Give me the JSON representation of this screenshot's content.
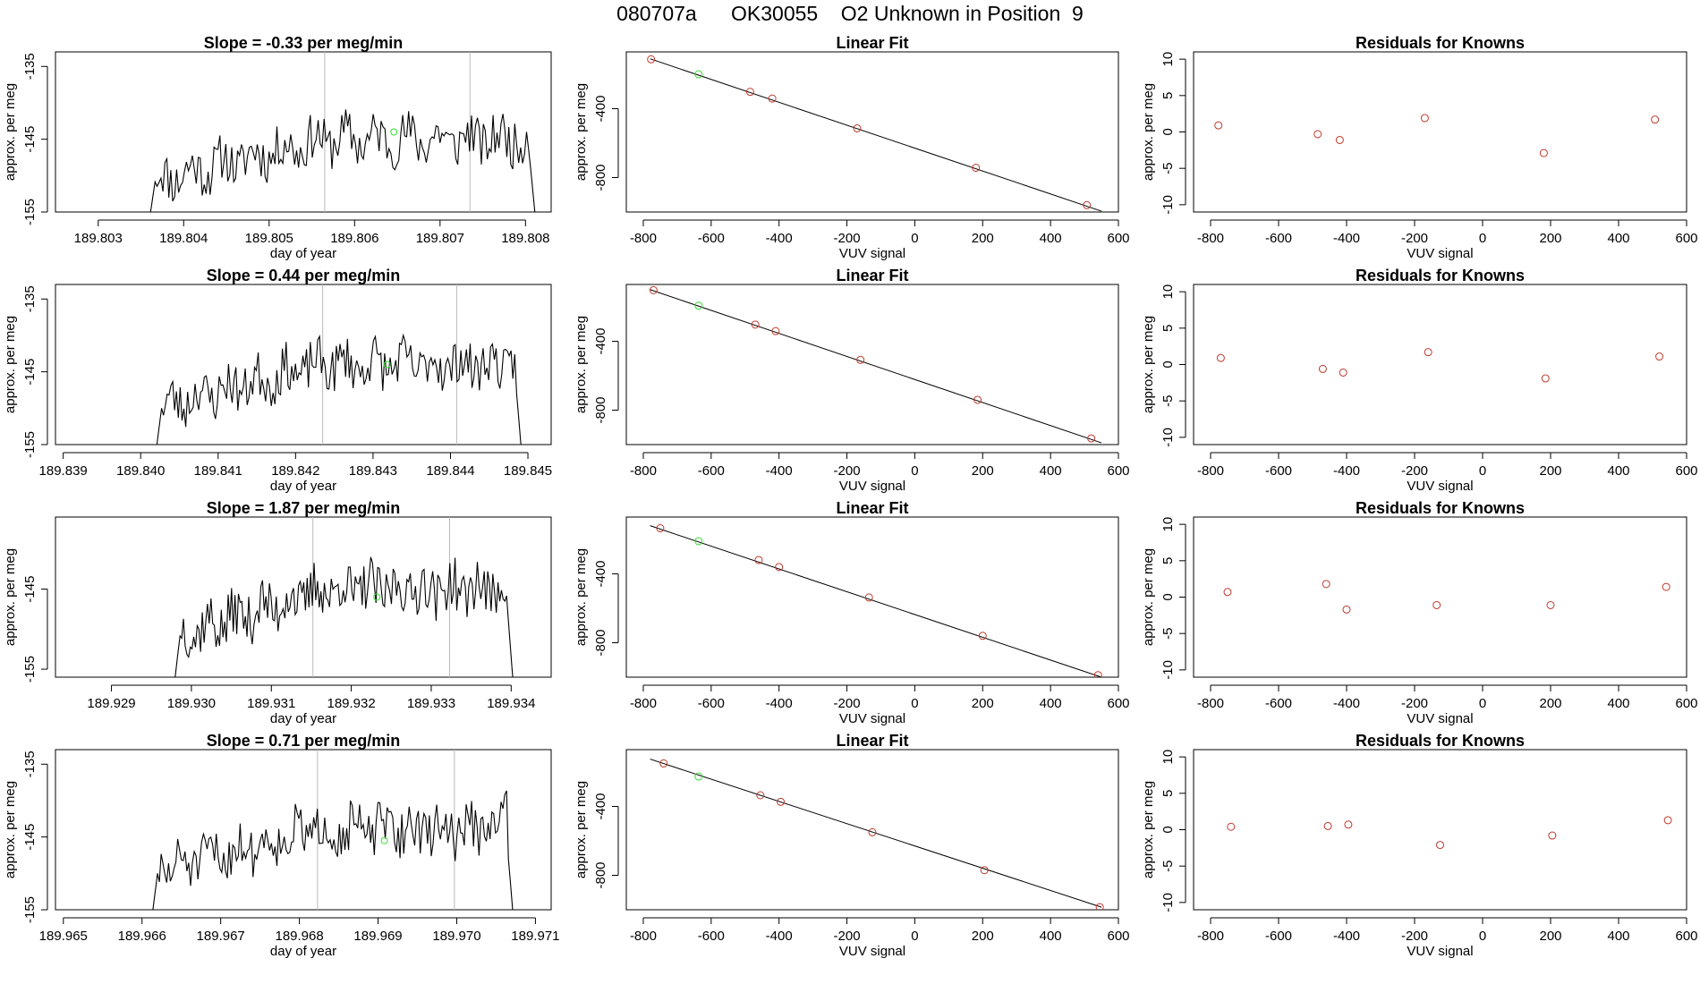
{
  "page_title": "080707a      OK30055    O2 Unknown in Position  9",
  "colors": {
    "line": "#000000",
    "known_point": "#c0392b",
    "unknown_point": "#33dd33",
    "marker_line": "#bbbbbb",
    "frame": "#000000"
  },
  "chart_data": [
    {
      "type": "line",
      "row": 1,
      "title": "Slope =  -0.33  per meg/min",
      "xlabel": "day of year",
      "ylabel": "approx. per meg",
      "xlim": [
        189.8025,
        189.8083
      ],
      "ylim": [
        -155,
        -133
      ],
      "xticks": [
        "189.803",
        "189.804",
        "189.805",
        "189.806",
        "189.807",
        "189.808"
      ],
      "xtick_values": [
        189.803,
        189.804,
        189.805,
        189.806,
        189.807,
        189.808
      ],
      "yticks": [
        "-155",
        "-145",
        "-135"
      ],
      "ytick_values": [
        -155,
        -145,
        -135
      ],
      "x_start": 189.80355,
      "x_end": 189.80815,
      "baseline": -148,
      "seed": 11,
      "edge_start": -160,
      "edge_end": -160,
      "spike": null,
      "vlines": [
        189.80565,
        189.80735
      ],
      "unknown_marker": {
        "x": 189.80646,
        "y": -144
      }
    },
    {
      "type": "scatter",
      "row": 1,
      "title": "Linear Fit",
      "xlabel": "VUV signal",
      "ylabel": "approx. per meg",
      "xlim": [
        -850,
        600
      ],
      "ylim": [
        -1000,
        -70
      ],
      "xticks": [
        "-800",
        "-600",
        "-400",
        "-200",
        "0",
        "200",
        "400",
        "600"
      ],
      "xtick_values": [
        -800,
        -600,
        -400,
        -200,
        0,
        200,
        400,
        600
      ],
      "yticks": [
        "-800",
        "-400"
      ],
      "ytick_values": [
        -800,
        -400
      ],
      "fit_line": [
        [
          -780,
          -110
        ],
        [
          550,
          -995
        ]
      ],
      "points": [
        [
          -777,
          -113
        ],
        [
          -485,
          -302
        ],
        [
          -420,
          -341
        ],
        [
          -170,
          -514
        ],
        [
          180,
          -743
        ],
        [
          507,
          -960
        ]
      ],
      "unknown_point": [
        -637,
        -200
      ]
    },
    {
      "type": "scatter",
      "row": 1,
      "title": "Residuals for Knowns",
      "xlabel": "VUV signal",
      "ylabel": "approx. per meg",
      "xlim": [
        -850,
        600
      ],
      "ylim": [
        -11,
        11
      ],
      "xticks": [
        "-800",
        "-600",
        "-400",
        "-200",
        "0",
        "200",
        "400",
        "600"
      ],
      "xtick_values": [
        -800,
        -600,
        -400,
        -200,
        0,
        200,
        400,
        600
      ],
      "yticks": [
        "-10",
        "-5",
        "0",
        "5",
        "10"
      ],
      "ytick_values": [
        -10,
        -5,
        0,
        5,
        10
      ],
      "points": [
        [
          -777,
          0.9
        ],
        [
          -485,
          -0.3
        ],
        [
          -420,
          -1.1
        ],
        [
          -170,
          1.9
        ],
        [
          180,
          -2.9
        ],
        [
          507,
          1.7
        ]
      ]
    },
    {
      "type": "line",
      "row": 2,
      "title": "Slope =  0.44  per meg/min",
      "xlabel": "day of year",
      "ylabel": "approx. per meg",
      "xlim": [
        189.8389,
        189.8453
      ],
      "ylim": [
        -155,
        -133
      ],
      "xticks": [
        "189.839",
        "189.840",
        "189.841",
        "189.842",
        "189.843",
        "189.844",
        "189.845"
      ],
      "xtick_values": [
        189.839,
        189.84,
        189.841,
        189.842,
        189.843,
        189.844,
        189.845
      ],
      "yticks": [
        "-155",
        "-145",
        "-135"
      ],
      "ytick_values": [
        -155,
        -145,
        -135
      ],
      "x_start": 189.84015,
      "x_end": 189.84495,
      "baseline": -147,
      "seed": 23,
      "edge_start": -160,
      "edge_end": -160,
      "spike": null,
      "vlines": [
        189.84235,
        189.84408
      ],
      "unknown_marker": {
        "x": 189.84318,
        "y": -144
      }
    },
    {
      "type": "scatter",
      "row": 2,
      "title": "Linear Fit",
      "xlabel": "VUV signal",
      "ylabel": "approx. per meg",
      "xlim": [
        -850,
        600
      ],
      "ylim": [
        -1000,
        -70
      ],
      "xticks": [
        "-800",
        "-600",
        "-400",
        "-200",
        "0",
        "200",
        "400",
        "600"
      ],
      "xtick_values": [
        -800,
        -600,
        -400,
        -200,
        0,
        200,
        400,
        600
      ],
      "yticks": [
        "-800",
        "-400"
      ],
      "ytick_values": [
        -800,
        -400
      ],
      "fit_line": [
        [
          -780,
          -100
        ],
        [
          550,
          -990
        ]
      ],
      "points": [
        [
          -770,
          -103
        ],
        [
          -470,
          -303
        ],
        [
          -410,
          -341
        ],
        [
          -160,
          -508
        ],
        [
          185,
          -740
        ],
        [
          520,
          -964
        ]
      ],
      "unknown_point": [
        -637,
        -193
      ]
    },
    {
      "type": "scatter",
      "row": 2,
      "title": "Residuals for Knowns",
      "xlabel": "VUV signal",
      "ylabel": "approx. per meg",
      "xlim": [
        -850,
        600
      ],
      "ylim": [
        -11,
        11
      ],
      "xticks": [
        "-800",
        "-600",
        "-400",
        "-200",
        "0",
        "200",
        "400",
        "600"
      ],
      "xtick_values": [
        -800,
        -600,
        -400,
        -200,
        0,
        200,
        400,
        600
      ],
      "yticks": [
        "-10",
        "-5",
        "0",
        "5",
        "10"
      ],
      "ytick_values": [
        -10,
        -5,
        0,
        5,
        10
      ],
      "points": [
        [
          -770,
          0.9
        ],
        [
          -470,
          -0.6
        ],
        [
          -410,
          -1.1
        ],
        [
          -160,
          1.7
        ],
        [
          185,
          -1.9
        ],
        [
          520,
          1.1
        ]
      ]
    },
    {
      "type": "line",
      "row": 3,
      "title": "Slope =  1.87  per meg/min",
      "xlabel": "day of year",
      "ylabel": "approx. per meg",
      "xlim": [
        189.9283,
        189.9345
      ],
      "ylim": [
        -156,
        -136
      ],
      "xticks": [
        "189.929",
        "189.930",
        "189.931",
        "189.932",
        "189.933",
        "189.934"
      ],
      "xtick_values": [
        189.929,
        189.93,
        189.931,
        189.932,
        189.933,
        189.934
      ],
      "yticks": [
        "-155",
        "-145"
      ],
      "ytick_values": [
        -155,
        -145
      ],
      "x_start": 189.92975,
      "x_end": 189.93405,
      "baseline": -148,
      "seed": 37,
      "edge_start": -160,
      "edge_end": -160,
      "spike": null,
      "vlines": [
        189.93152,
        189.93323
      ],
      "unknown_marker": {
        "x": 189.93232,
        "y": -146
      }
    },
    {
      "type": "scatter",
      "row": 3,
      "title": "Linear Fit",
      "xlabel": "VUV signal",
      "ylabel": "approx. per meg",
      "xlim": [
        -850,
        600
      ],
      "ylim": [
        -1000,
        -70
      ],
      "xticks": [
        "-800",
        "-600",
        "-400",
        "-200",
        "0",
        "200",
        "400",
        "600"
      ],
      "xtick_values": [
        -800,
        -600,
        -400,
        -200,
        0,
        200,
        400,
        600
      ],
      "yticks": [
        "-800",
        "-400"
      ],
      "ytick_values": [
        -800,
        -400
      ],
      "fit_line": [
        [
          -780,
          -120
        ],
        [
          550,
          -1000
        ]
      ],
      "points": [
        [
          -750,
          -135
        ],
        [
          -460,
          -320
        ],
        [
          -400,
          -360
        ],
        [
          -135,
          -537
        ],
        [
          200,
          -760
        ],
        [
          540,
          -988
        ]
      ],
      "unknown_point": [
        -637,
        -210
      ]
    },
    {
      "type": "scatter",
      "row": 3,
      "title": "Residuals for Knowns",
      "xlabel": "VUV signal",
      "ylabel": "approx. per meg",
      "xlim": [
        -850,
        600
      ],
      "ylim": [
        -11,
        11
      ],
      "xticks": [
        "-800",
        "-600",
        "-400",
        "-200",
        "0",
        "200",
        "400",
        "600"
      ],
      "xtick_values": [
        -800,
        -600,
        -400,
        -200,
        0,
        200,
        400,
        600
      ],
      "yticks": [
        "-10",
        "-5",
        "0",
        "5",
        "10"
      ],
      "ytick_values": [
        -10,
        -5,
        0,
        5,
        10
      ],
      "points": [
        [
          -750,
          0.7
        ],
        [
          -460,
          1.8
        ],
        [
          -400,
          -1.7
        ],
        [
          -135,
          -1.1
        ],
        [
          200,
          -1.1
        ],
        [
          540,
          1.4
        ]
      ]
    },
    {
      "type": "line",
      "row": 4,
      "title": "Slope =  0.71  per meg/min",
      "xlabel": "day of year",
      "ylabel": "approx. per meg",
      "xlim": [
        189.9649,
        189.9712
      ],
      "ylim": [
        -155,
        -133
      ],
      "xticks": [
        "189.965",
        "189.966",
        "189.967",
        "189.968",
        "189.969",
        "189.970",
        "189.971"
      ],
      "xtick_values": [
        189.965,
        189.966,
        189.967,
        189.968,
        189.969,
        189.97,
        189.971
      ],
      "yticks": [
        "-155",
        "-145",
        "-135"
      ],
      "ytick_values": [
        -155,
        -145,
        -135
      ],
      "x_start": 189.96608,
      "x_end": 189.97075,
      "baseline": -147,
      "seed": 51,
      "edge_start": -160,
      "edge_end": -160,
      "spike": {
        "x": 189.97062,
        "y": -137.5
      },
      "vlines": [
        189.96823,
        189.96997
      ],
      "unknown_marker": {
        "x": 189.96908,
        "y": -145.5
      }
    },
    {
      "type": "scatter",
      "row": 4,
      "title": "Linear Fit",
      "xlabel": "VUV signal",
      "ylabel": "approx. per meg",
      "xlim": [
        -850,
        600
      ],
      "ylim": [
        -1000,
        -70
      ],
      "xticks": [
        "-800",
        "-600",
        "-400",
        "-200",
        "0",
        "200",
        "400",
        "600"
      ],
      "xtick_values": [
        -800,
        -600,
        -400,
        -200,
        0,
        200,
        400,
        600
      ],
      "yticks": [
        "-800",
        "-400"
      ],
      "ytick_values": [
        -800,
        -400
      ],
      "fit_line": [
        [
          -780,
          -125
        ],
        [
          550,
          -985
        ]
      ],
      "points": [
        [
          -740,
          -150
        ],
        [
          -455,
          -335
        ],
        [
          -395,
          -373
        ],
        [
          -125,
          -550
        ],
        [
          205,
          -770
        ],
        [
          545,
          -985
        ]
      ],
      "unknown_point": [
        -637,
        -226
      ]
    },
    {
      "type": "scatter",
      "row": 4,
      "title": "Residuals for Knowns",
      "xlabel": "VUV signal",
      "ylabel": "approx. per meg",
      "xlim": [
        -850,
        600
      ],
      "ylim": [
        -11,
        11
      ],
      "xticks": [
        "-800",
        "-600",
        "-400",
        "-200",
        "0",
        "200",
        "400",
        "600"
      ],
      "xtick_values": [
        -800,
        -600,
        -400,
        -200,
        0,
        200,
        400,
        600
      ],
      "yticks": [
        "-10",
        "-5",
        "0",
        "5",
        "10"
      ],
      "ytick_values": [
        -10,
        -5,
        0,
        5,
        10
      ],
      "points": [
        [
          -740,
          0.4
        ],
        [
          -455,
          0.5
        ],
        [
          -395,
          0.7
        ],
        [
          -125,
          -2.1
        ],
        [
          205,
          -0.8
        ],
        [
          545,
          1.3
        ]
      ]
    }
  ]
}
